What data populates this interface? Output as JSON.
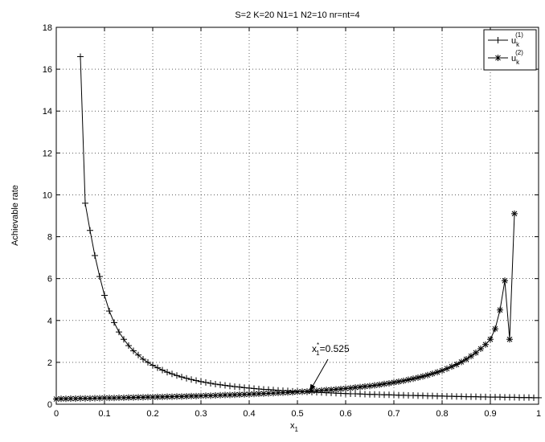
{
  "chart_data": {
    "type": "line",
    "title": "S=2 K=20 N1=1 N2=10 nr=nt=4",
    "xlabel": "x",
    "xlabel_sub": "1",
    "ylabel": "Achievable rate",
    "xlim": [
      0,
      1
    ],
    "ylim": [
      0,
      18
    ],
    "x_ticks": [
      0,
      0.1,
      0.2,
      0.3,
      0.4,
      0.5,
      0.6,
      0.7,
      0.8,
      0.9,
      1
    ],
    "x_tick_labels": [
      "0",
      "0.1",
      "0.2",
      "0.3",
      "0.4",
      "0.5",
      "0.6",
      "0.7",
      "0.8",
      "0.9",
      "1"
    ],
    "y_ticks": [
      0,
      2,
      4,
      6,
      8,
      10,
      12,
      14,
      16,
      18
    ],
    "y_tick_labels": [
      "0",
      "2",
      "4",
      "6",
      "8",
      "10",
      "12",
      "14",
      "16",
      "18"
    ],
    "grid": true,
    "legend_position": "top-right",
    "series": [
      {
        "name": "u",
        "name_sub": "k",
        "name_sup": "(1)",
        "marker": "plus",
        "color": "#000000",
        "x": [
          0.05,
          0.06,
          0.07,
          0.08,
          0.09,
          0.1,
          0.11,
          0.12,
          0.13,
          0.14,
          0.15,
          0.16,
          0.17,
          0.18,
          0.19,
          0.2,
          0.21,
          0.22,
          0.23,
          0.24,
          0.25,
          0.26,
          0.27,
          0.28,
          0.29,
          0.3,
          0.31,
          0.32,
          0.33,
          0.34,
          0.35,
          0.36,
          0.37,
          0.38,
          0.39,
          0.4,
          0.41,
          0.42,
          0.43,
          0.44,
          0.45,
          0.46,
          0.47,
          0.48,
          0.49,
          0.5,
          0.51,
          0.52,
          0.53,
          0.54,
          0.55,
          0.56,
          0.57,
          0.58,
          0.59,
          0.6,
          0.61,
          0.62,
          0.63,
          0.64,
          0.65,
          0.66,
          0.67,
          0.68,
          0.69,
          0.7,
          0.71,
          0.72,
          0.73,
          0.74,
          0.75,
          0.76,
          0.77,
          0.78,
          0.79,
          0.8,
          0.81,
          0.82,
          0.83,
          0.84,
          0.85,
          0.86,
          0.87,
          0.88,
          0.89,
          0.9,
          0.91,
          0.92,
          0.93,
          0.94,
          0.95,
          0.96,
          0.97,
          0.98,
          0.99,
          1.0
        ],
        "y": [
          16.6,
          9.6,
          8.3,
          7.1,
          6.1,
          5.2,
          4.45,
          3.9,
          3.45,
          3.1,
          2.8,
          2.55,
          2.35,
          2.15,
          2.0,
          1.86,
          1.74,
          1.63,
          1.53,
          1.45,
          1.37,
          1.3,
          1.24,
          1.18,
          1.13,
          1.08,
          1.04,
          1.0,
          0.96,
          0.93,
          0.9,
          0.87,
          0.84,
          0.82,
          0.79,
          0.77,
          0.75,
          0.73,
          0.71,
          0.7,
          0.68,
          0.66,
          0.65,
          0.64,
          0.62,
          0.61,
          0.6,
          0.59,
          0.58,
          0.57,
          0.56,
          0.55,
          0.54,
          0.53,
          0.52,
          0.51,
          0.5,
          0.5,
          0.49,
          0.48,
          0.47,
          0.47,
          0.46,
          0.45,
          0.45,
          0.44,
          0.43,
          0.43,
          0.42,
          0.42,
          0.41,
          0.41,
          0.4,
          0.4,
          0.39,
          0.39,
          0.38,
          0.38,
          0.37,
          0.37,
          0.36,
          0.36,
          0.36,
          0.35,
          0.35,
          0.34,
          0.34,
          0.34,
          0.33,
          0.33,
          0.33,
          0.32,
          0.32,
          0.32,
          0.31,
          0.31
        ]
      },
      {
        "name": "u",
        "name_sub": "k",
        "name_sup": "(2)",
        "marker": "asterisk",
        "color": "#000000",
        "x": [
          0.0,
          0.01,
          0.02,
          0.03,
          0.04,
          0.05,
          0.06,
          0.07,
          0.08,
          0.09,
          0.1,
          0.11,
          0.12,
          0.13,
          0.14,
          0.15,
          0.16,
          0.17,
          0.18,
          0.19,
          0.2,
          0.21,
          0.22,
          0.23,
          0.24,
          0.25,
          0.26,
          0.27,
          0.28,
          0.29,
          0.3,
          0.31,
          0.32,
          0.33,
          0.34,
          0.35,
          0.36,
          0.37,
          0.38,
          0.39,
          0.4,
          0.41,
          0.42,
          0.43,
          0.44,
          0.45,
          0.46,
          0.47,
          0.48,
          0.49,
          0.5,
          0.51,
          0.52,
          0.53,
          0.54,
          0.55,
          0.56,
          0.57,
          0.58,
          0.59,
          0.6,
          0.61,
          0.62,
          0.63,
          0.64,
          0.65,
          0.66,
          0.67,
          0.68,
          0.69,
          0.7,
          0.71,
          0.72,
          0.73,
          0.74,
          0.75,
          0.76,
          0.77,
          0.78,
          0.79,
          0.8,
          0.81,
          0.82,
          0.83,
          0.84,
          0.85,
          0.86,
          0.87,
          0.88,
          0.89,
          0.9,
          0.91,
          0.92,
          0.93,
          0.94,
          0.95
        ],
        "y": [
          0.25,
          0.26,
          0.26,
          0.27,
          0.27,
          0.28,
          0.28,
          0.28,
          0.29,
          0.29,
          0.3,
          0.3,
          0.3,
          0.31,
          0.31,
          0.32,
          0.32,
          0.33,
          0.33,
          0.34,
          0.34,
          0.35,
          0.35,
          0.36,
          0.36,
          0.37,
          0.37,
          0.38,
          0.39,
          0.39,
          0.4,
          0.41,
          0.41,
          0.42,
          0.43,
          0.44,
          0.44,
          0.45,
          0.46,
          0.47,
          0.48,
          0.49,
          0.5,
          0.51,
          0.52,
          0.53,
          0.54,
          0.55,
          0.56,
          0.57,
          0.59,
          0.6,
          0.61,
          0.63,
          0.64,
          0.66,
          0.68,
          0.69,
          0.71,
          0.73,
          0.75,
          0.77,
          0.8,
          0.82,
          0.85,
          0.87,
          0.9,
          0.93,
          0.97,
          1.0,
          1.04,
          1.08,
          1.12,
          1.17,
          1.22,
          1.27,
          1.33,
          1.39,
          1.46,
          1.53,
          1.61,
          1.7,
          1.8,
          1.9,
          2.02,
          2.15,
          2.3,
          2.46,
          2.65,
          2.85,
          3.1,
          3.6,
          4.5,
          5.9,
          3.1,
          9.1
        ]
      }
    ],
    "annotation": {
      "text_main": "x",
      "text_sup": "*",
      "text_sub": "1",
      "text_rest": "=0.525",
      "target_x": 0.525,
      "target_y": 0.6
    }
  }
}
